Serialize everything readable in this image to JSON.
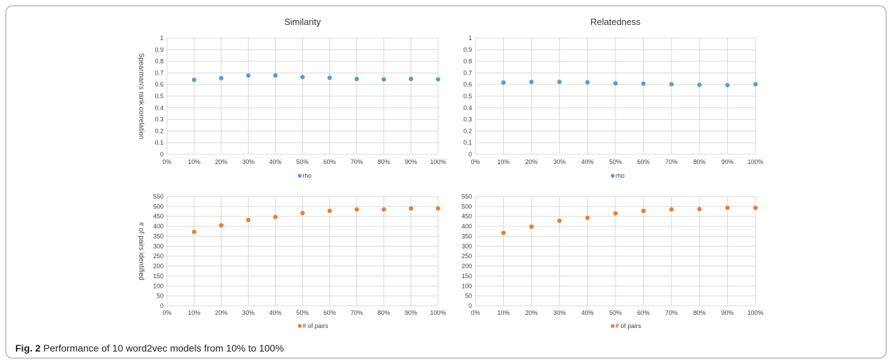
{
  "caption": {
    "label": "Fig. 2",
    "text": "Performance of 10 word2vec models from 10% to 100%"
  },
  "chart_data": [
    {
      "type": "scatter",
      "title": "Similarity",
      "xlabel": "",
      "ylabel": "Spearman's rank correlation",
      "x_ticks": [
        "0%",
        "10%",
        "20%",
        "30%",
        "40%",
        "50%",
        "60%",
        "70%",
        "80%",
        "90%",
        "100%"
      ],
      "y_ticks": [
        "0",
        "0.1",
        "0.2",
        "0.3",
        "0.4",
        "0.5",
        "0.6",
        "0.7",
        "0.8",
        "0.9",
        "1"
      ],
      "ylim": [
        0,
        1
      ],
      "grid": true,
      "legend": "bottom",
      "series": [
        {
          "name": "rho",
          "color": "#5b9bd5",
          "x": [
            "10%",
            "20%",
            "30%",
            "40%",
            "50%",
            "60%",
            "70%",
            "80%",
            "90%",
            "100%"
          ],
          "values": [
            0.64,
            0.655,
            0.678,
            0.678,
            0.665,
            0.658,
            0.648,
            0.645,
            0.648,
            0.645
          ]
        }
      ]
    },
    {
      "type": "scatter",
      "title": "Relatedness",
      "xlabel": "",
      "ylabel": "",
      "x_ticks": [
        "0%",
        "10%",
        "20%",
        "30%",
        "40%",
        "50%",
        "60%",
        "70%",
        "80%",
        "90%",
        "100%"
      ],
      "y_ticks": [
        "0",
        "0.1",
        "0.2",
        "0.3",
        "0.4",
        "0.5",
        "0.6",
        "0.7",
        "0.8",
        "0.9",
        "1"
      ],
      "ylim": [
        0,
        1
      ],
      "grid": true,
      "legend": "bottom",
      "series": [
        {
          "name": "rho",
          "color": "#5b9bd5",
          "x": [
            "10%",
            "20%",
            "30%",
            "40%",
            "50%",
            "60%",
            "70%",
            "80%",
            "90%",
            "100%"
          ],
          "values": [
            0.618,
            0.623,
            0.623,
            0.62,
            0.61,
            0.608,
            0.603,
            0.598,
            0.595,
            0.603
          ]
        }
      ]
    },
    {
      "type": "scatter",
      "title": "",
      "xlabel": "",
      "ylabel": "# of pairs identified",
      "x_ticks": [
        "0%",
        "10%",
        "20%",
        "30%",
        "40%",
        "50%",
        "60%",
        "70%",
        "80%",
        "90%",
        "100%"
      ],
      "y_ticks": [
        "0",
        "50",
        "100",
        "150",
        "200",
        "250",
        "300",
        "350",
        "400",
        "450",
        "500",
        "550"
      ],
      "ylim": [
        0,
        550
      ],
      "grid": true,
      "legend": "bottom",
      "series": [
        {
          "name": "# of pairs",
          "color": "#ed7d31",
          "x": [
            "10%",
            "20%",
            "30%",
            "40%",
            "50%",
            "60%",
            "70%",
            "80%",
            "90%",
            "100%"
          ],
          "values": [
            372,
            405,
            432,
            447,
            467,
            478,
            485,
            485,
            490,
            490
          ]
        }
      ]
    },
    {
      "type": "scatter",
      "title": "",
      "xlabel": "",
      "ylabel": "",
      "x_ticks": [
        "0%",
        "10%",
        "20%",
        "30%",
        "40%",
        "50%",
        "60%",
        "70%",
        "80%",
        "90%",
        "100%"
      ],
      "y_ticks": [
        "0",
        "50",
        "100",
        "150",
        "200",
        "250",
        "300",
        "350",
        "400",
        "450",
        "500",
        "550"
      ],
      "ylim": [
        0,
        550
      ],
      "grid": true,
      "legend": "bottom",
      "series": [
        {
          "name": "# of pairs",
          "color": "#ed7d31",
          "x": [
            "10%",
            "20%",
            "30%",
            "40%",
            "50%",
            "60%",
            "70%",
            "80%",
            "90%",
            "100%"
          ],
          "values": [
            367,
            398,
            428,
            443,
            465,
            478,
            485,
            487,
            493,
            493
          ]
        }
      ]
    }
  ]
}
